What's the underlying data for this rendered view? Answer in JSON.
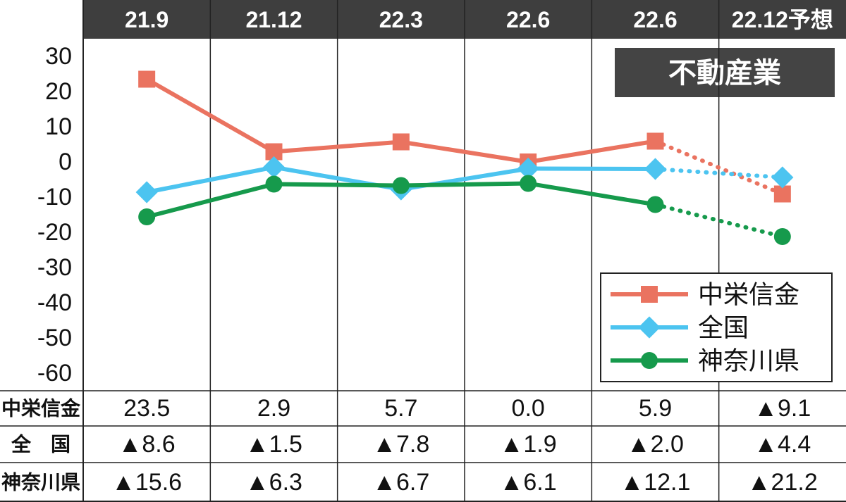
{
  "chart_data": {
    "type": "line",
    "title": "不動産業",
    "categories": [
      "21.9",
      "21.12",
      "22.3",
      "22.6",
      "22.6",
      "22.12予想"
    ],
    "series": [
      {
        "name": "中栄信金",
        "color": "#ea7360",
        "marker": "square",
        "values": [
          23.5,
          2.9,
          5.7,
          0.0,
          5.9,
          -9.1
        ],
        "value_labels": [
          "23.5",
          "2.9",
          "5.7",
          "0.0",
          "5.9",
          "▲9.1"
        ]
      },
      {
        "name": "全国",
        "color": "#4cc4f0",
        "marker": "diamond",
        "values": [
          -8.6,
          -1.5,
          -7.8,
          -1.9,
          -2.0,
          -4.4
        ],
        "value_labels": [
          "▲8.6",
          "▲1.5",
          "▲7.8",
          "▲1.9",
          "▲2.0",
          "▲4.4"
        ]
      },
      {
        "name": "神奈川県",
        "color": "#169a4c",
        "marker": "circle",
        "values": [
          -15.6,
          -6.3,
          -6.7,
          -6.1,
          -12.1,
          -21.2
        ],
        "value_labels": [
          "▲15.6",
          "▲6.3",
          "▲6.7",
          "▲6.1",
          "▲12.1",
          "▲21.2"
        ]
      }
    ],
    "table_row_labels": [
      "中栄信金",
      "全　国",
      "神奈川県"
    ],
    "dotted_from": 4,
    "ylim": [
      -65,
      35
    ],
    "yticks": [
      30,
      20,
      10,
      0,
      -10,
      -20,
      -30,
      -40,
      -50,
      -60
    ],
    "legend": "lower right"
  }
}
